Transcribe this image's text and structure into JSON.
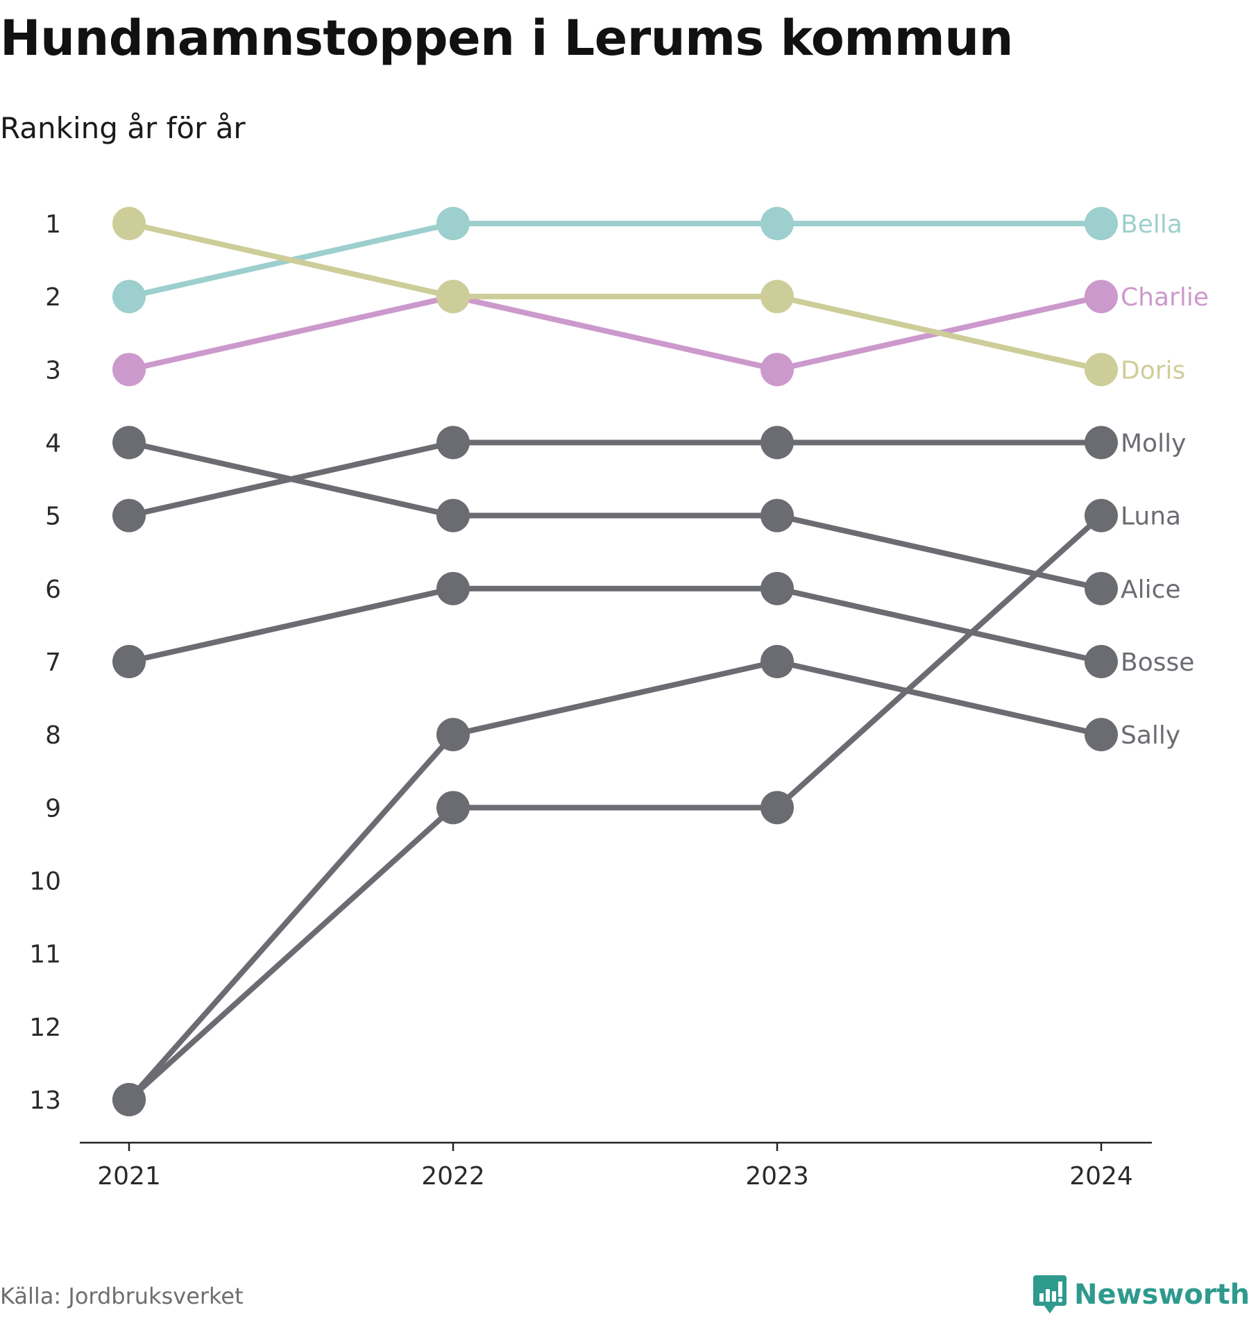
{
  "title": "Hundnamnstoppen i Lerums kommun",
  "subtitle": "Ranking år för år",
  "source": "Källa: Jordbruksverket",
  "brand": {
    "name": "Newsworthy",
    "icon": "newsworthy-logo-icon",
    "color": "#2e9a8e"
  },
  "chart_data": {
    "type": "line",
    "subtype": "bump",
    "x": [
      "2021",
      "2022",
      "2023",
      "2024"
    ],
    "y_ticks": [
      1,
      2,
      3,
      4,
      5,
      6,
      7,
      8,
      9,
      10,
      11,
      12,
      13
    ],
    "ylim": [
      1,
      13
    ],
    "y_reversed": true,
    "grid": false,
    "series": [
      {
        "name": "Bella",
        "values": [
          2,
          1,
          1,
          1
        ],
        "color": "#9ccfcd"
      },
      {
        "name": "Charlie",
        "values": [
          3,
          2,
          3,
          2
        ],
        "color": "#cc99cc"
      },
      {
        "name": "Doris",
        "values": [
          1,
          2,
          2,
          3
        ],
        "color": "#cdcd99"
      },
      {
        "name": "Molly",
        "values": [
          5,
          4,
          4,
          4
        ],
        "color": "#6b6b72"
      },
      {
        "name": "Luna",
        "values": [
          13,
          9,
          9,
          5
        ],
        "color": "#6b6b72"
      },
      {
        "name": "Alice",
        "values": [
          4,
          5,
          5,
          6
        ],
        "color": "#6b6b72"
      },
      {
        "name": "Bosse",
        "values": [
          7,
          6,
          6,
          7
        ],
        "color": "#6b6b72"
      },
      {
        "name": "Sally",
        "values": [
          13,
          8,
          7,
          8
        ],
        "color": "#6b6b72"
      }
    ]
  }
}
